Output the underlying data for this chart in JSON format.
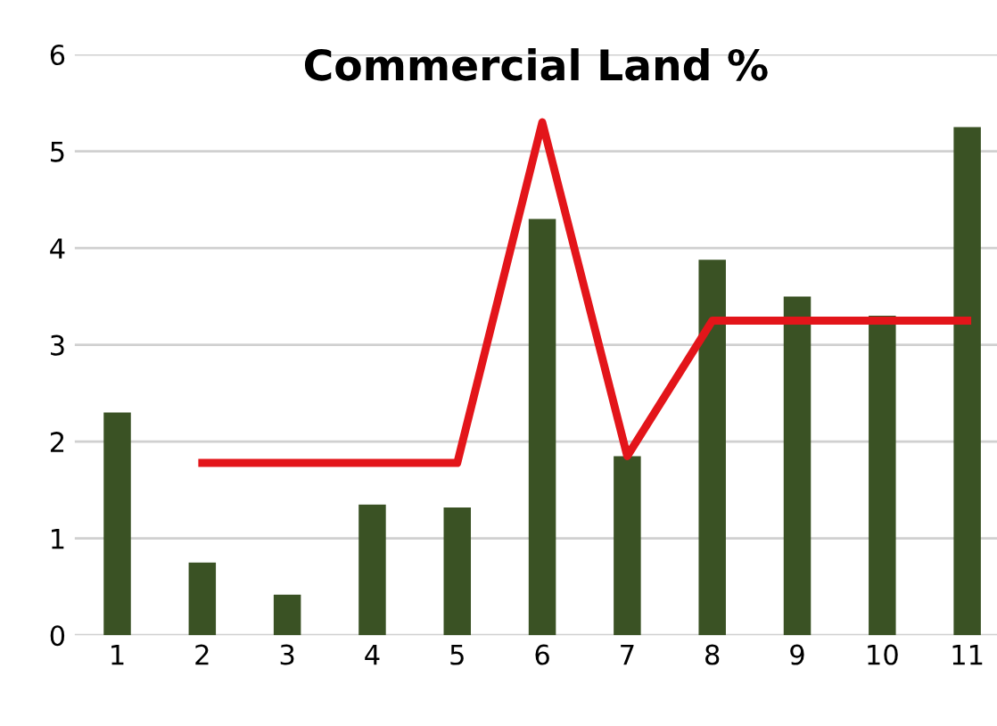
{
  "chart_data": {
    "type": "bar",
    "title": "Commercial Land %",
    "categories": [
      "1",
      "2",
      "3",
      "4",
      "5",
      "6",
      "7",
      "8",
      "9",
      "10",
      "11"
    ],
    "series": [
      {
        "color": "#3a5224",
        "values": [
          2.3,
          0.75,
          0.42,
          1.35,
          1.32,
          4.3,
          1.85,
          3.88,
          3.5,
          3.3,
          5.25
        ]
      },
      {
        "type": "line",
        "color": "#e3151a",
        "values": [
          null,
          1.78,
          1.78,
          1.78,
          1.78,
          5.3,
          1.85,
          3.25,
          3.25,
          3.25,
          3.25
        ]
      }
    ],
    "ylim": [
      0,
      6
    ],
    "yticks": [
      0,
      1,
      2,
      3,
      4,
      5,
      6
    ],
    "grid": "y",
    "marker": "none",
    "line_style": "solid"
  }
}
